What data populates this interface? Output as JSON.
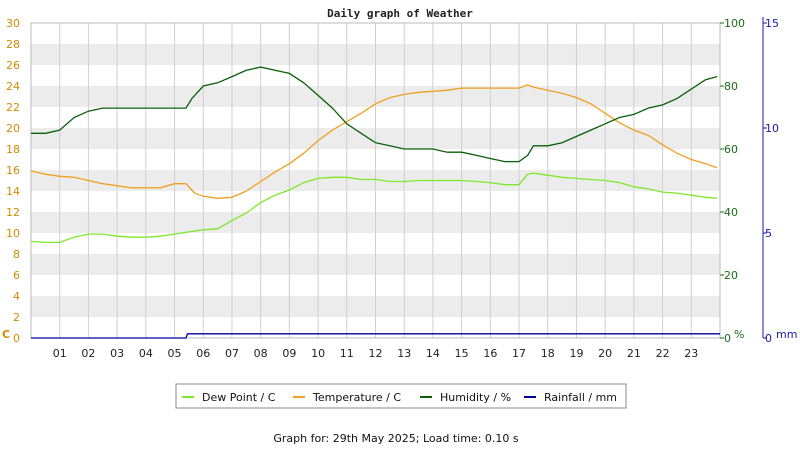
{
  "chart_data": {
    "type": "line",
    "title": "Daily graph of Weather",
    "x_ticks": [
      "01",
      "02",
      "03",
      "04",
      "05",
      "06",
      "07",
      "08",
      "09",
      "10",
      "11",
      "12",
      "13",
      "14",
      "15",
      "16",
      "17",
      "18",
      "19",
      "20",
      "21",
      "22",
      "23"
    ],
    "xlim": [
      0,
      24
    ],
    "axes": {
      "left": {
        "label": "C",
        "lim": [
          0,
          30
        ],
        "ticks": [
          0,
          2,
          4,
          6,
          8,
          10,
          12,
          14,
          16,
          18,
          20,
          22,
          24,
          26,
          28,
          30
        ],
        "color": "#d48a00"
      },
      "humidity": {
        "label": "%",
        "lim": [
          0,
          100
        ],
        "ticks": [
          0,
          20,
          40,
          60,
          80,
          100
        ],
        "color": "#1a6b1a"
      },
      "right": {
        "label": "mm",
        "lim": [
          0,
          15
        ],
        "ticks": [
          0,
          5,
          10,
          15
        ],
        "color": "#1a1aa8"
      }
    },
    "grid": true,
    "legend_position": "bottom",
    "series": [
      {
        "name": "Dew Point / C",
        "axis": "left",
        "color": "#7ee82a",
        "x": [
          0,
          0.5,
          1,
          1.5,
          2,
          2.5,
          3,
          3.5,
          4,
          4.5,
          5,
          5.5,
          6,
          6.5,
          7,
          7.5,
          8,
          8.5,
          9,
          9.5,
          10,
          10.5,
          11,
          11.5,
          12,
          12.5,
          13,
          13.5,
          14,
          14.5,
          15,
          15.5,
          16,
          16.5,
          17,
          17.3,
          17.5,
          18,
          18.5,
          19,
          19.5,
          20,
          20.5,
          21,
          21.5,
          22,
          22.5,
          23,
          23.5,
          23.9
        ],
        "y": [
          9.2,
          9.1,
          9.1,
          9.6,
          9.9,
          9.9,
          9.7,
          9.6,
          9.6,
          9.7,
          9.9,
          10.1,
          10.3,
          10.4,
          11.2,
          11.9,
          12.9,
          13.6,
          14.1,
          14.8,
          15.2,
          15.3,
          15.3,
          15.1,
          15.1,
          14.9,
          14.9,
          15.0,
          15.0,
          15.0,
          15.0,
          14.9,
          14.8,
          14.6,
          14.6,
          15.6,
          15.7,
          15.5,
          15.3,
          15.2,
          15.1,
          15.0,
          14.8,
          14.4,
          14.2,
          13.9,
          13.8,
          13.6,
          13.4,
          13.3
        ]
      },
      {
        "name": "Temperature / C",
        "axis": "left",
        "color": "#f0a020",
        "x": [
          0,
          0.5,
          1,
          1.5,
          2,
          2.5,
          3,
          3.5,
          4,
          4.5,
          5,
          5.4,
          5.7,
          6,
          6.5,
          7,
          7.5,
          8,
          8.5,
          9,
          9.5,
          10,
          10.5,
          11,
          11.5,
          12,
          12.5,
          13,
          13.5,
          14,
          14.5,
          15,
          15.5,
          16,
          16.5,
          17,
          17.3,
          17.5,
          18,
          18.5,
          19,
          19.5,
          20,
          20.5,
          21,
          21.5,
          22,
          22.5,
          23,
          23.5,
          23.9
        ],
        "y": [
          15.9,
          15.6,
          15.4,
          15.3,
          15.0,
          14.7,
          14.5,
          14.3,
          14.3,
          14.3,
          14.7,
          14.7,
          13.8,
          13.5,
          13.3,
          13.4,
          14.0,
          14.9,
          15.8,
          16.6,
          17.6,
          18.8,
          19.8,
          20.6,
          21.4,
          22.3,
          22.9,
          23.2,
          23.4,
          23.5,
          23.6,
          23.8,
          23.8,
          23.8,
          23.8,
          23.8,
          24.1,
          23.9,
          23.6,
          23.3,
          22.9,
          22.3,
          21.4,
          20.5,
          19.8,
          19.3,
          18.4,
          17.6,
          17.0,
          16.6,
          16.2
        ]
      },
      {
        "name": "Humidity / %",
        "axis": "humidity",
        "color": "#0a5f0a",
        "x": [
          0,
          0.5,
          1,
          1.5,
          2,
          2.5,
          3,
          3.5,
          4,
          4.5,
          5,
          5.4,
          5.6,
          6,
          6.5,
          7,
          7.5,
          8,
          8.5,
          9,
          9.5,
          10,
          10.5,
          11,
          11.5,
          12,
          12.5,
          13,
          13.5,
          14,
          14.5,
          15,
          15.5,
          16,
          16.5,
          17,
          17.3,
          17.5,
          18,
          18.5,
          19,
          19.5,
          20,
          20.5,
          21,
          21.5,
          22,
          22.5,
          23,
          23.5,
          23.9
        ],
        "y": [
          65,
          65,
          66,
          70,
          72,
          73,
          73,
          73,
          73,
          73,
          73,
          73,
          76,
          80,
          81,
          83,
          85,
          86,
          85,
          84,
          81,
          77,
          73,
          68,
          65,
          62,
          61,
          60,
          60,
          60,
          59,
          59,
          58,
          57,
          56,
          56,
          58,
          61,
          61,
          62,
          64,
          66,
          68,
          70,
          71,
          73,
          74,
          76,
          79,
          82,
          83
        ]
      },
      {
        "name": "Rainfall / mm",
        "axis": "right",
        "color": "#0000a0",
        "x": [
          0,
          5.4,
          5.45,
          24
        ],
        "y": [
          0,
          0,
          0.2,
          0.2
        ]
      }
    ]
  },
  "footer": "Graph for: 29th May 2025; Load time: 0.10 s"
}
